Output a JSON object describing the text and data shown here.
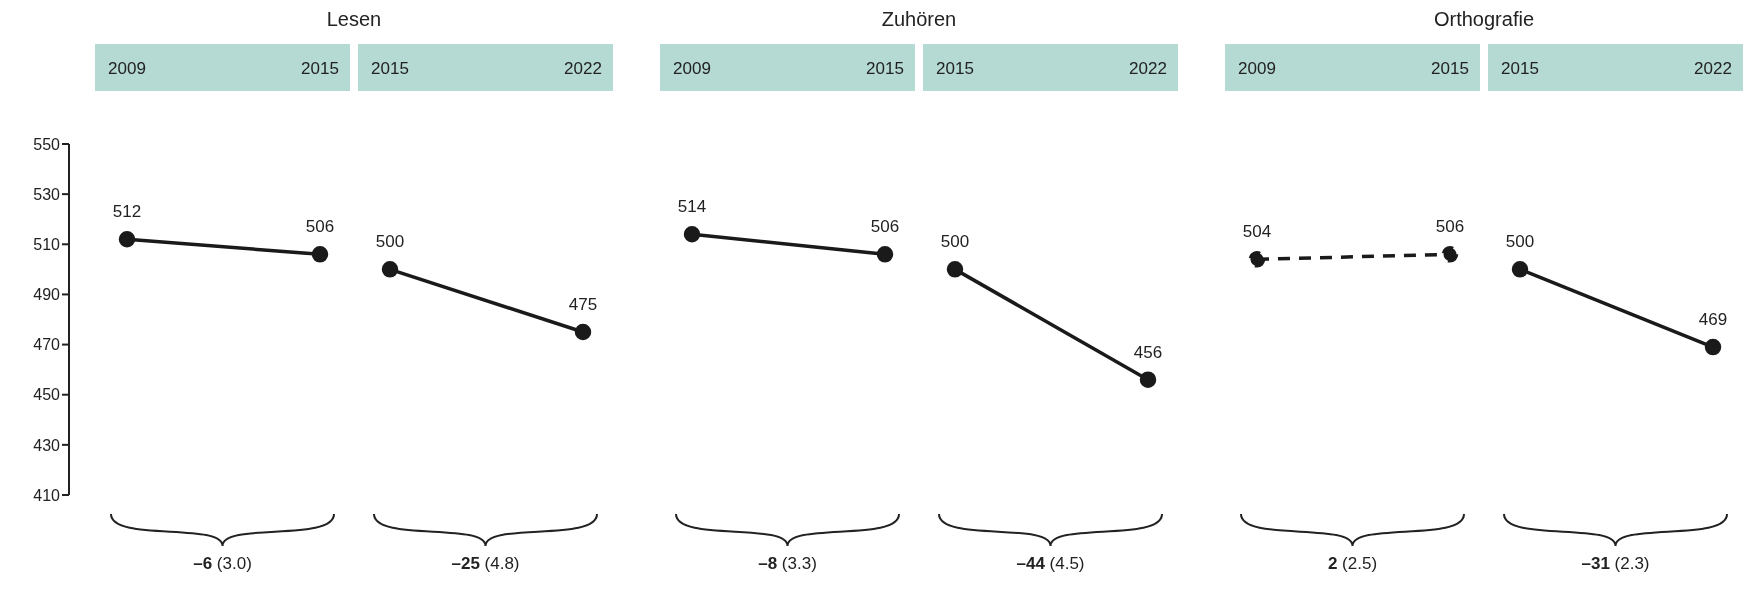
{
  "chart_data": [
    {
      "type": "line",
      "title": "Lesen",
      "categories": [
        "2009",
        "2015"
      ],
      "values": [
        512,
        506
      ],
      "color": "#1a1a1a",
      "ylim": [
        410,
        550
      ],
      "yticks": [
        410,
        430,
        450,
        470,
        490,
        510,
        530,
        550
      ],
      "data_labels": true,
      "marker": "circle",
      "line_style": "solid",
      "grid": false,
      "legend": false,
      "annotations": [
        "–6 (3.0)"
      ]
    },
    {
      "type": "line",
      "categories": [
        "2015",
        "2022"
      ],
      "values": [
        500,
        475
      ],
      "color": "#1a1a1a",
      "ylim": [
        410,
        550
      ],
      "tick_labels": "x",
      "data_labels": true,
      "marker": "circle",
      "line_style": "solid",
      "grid": false,
      "legend": false,
      "annotations": [
        "–25 (4.8)"
      ]
    },
    {
      "type": "line",
      "title": "Zuhören",
      "categories": [
        "2009",
        "2015"
      ],
      "values": [
        514,
        506
      ],
      "color": "#1a1a1a",
      "ylim": [
        410,
        550
      ],
      "tick_labels": "x",
      "data_labels": true,
      "marker": "circle",
      "line_style": "solid",
      "grid": false,
      "legend": false,
      "annotations": [
        "–8 (3.3)"
      ]
    },
    {
      "type": "line",
      "categories": [
        "2015",
        "2022"
      ],
      "values": [
        500,
        456
      ],
      "color": "#1a1a1a",
      "ylim": [
        410,
        550
      ],
      "tick_labels": "x",
      "data_labels": true,
      "marker": "circle",
      "line_style": "solid",
      "grid": false,
      "legend": false,
      "annotations": [
        "–44 (4.5)"
      ]
    },
    {
      "type": "line",
      "title": "Orthografie",
      "categories": [
        "2009",
        "2015"
      ],
      "values": [
        504,
        506
      ],
      "color": "#1a1a1a",
      "ylim": [
        410,
        550
      ],
      "tick_labels": "x",
      "data_labels": true,
      "marker": "circle",
      "line_style": "dashed",
      "grid": false,
      "legend": false,
      "annotations": [
        "2 (2.5)"
      ]
    },
    {
      "type": "line",
      "categories": [
        "2015",
        "2022"
      ],
      "values": [
        500,
        469
      ],
      "color": "#1a1a1a",
      "ylim": [
        410,
        550
      ],
      "tick_labels": "x",
      "data_labels": true,
      "marker": "circle",
      "line_style": "solid",
      "grid": false,
      "legend": false,
      "annotations": [
        "–31 (2.3)"
      ]
    }
  ]
}
